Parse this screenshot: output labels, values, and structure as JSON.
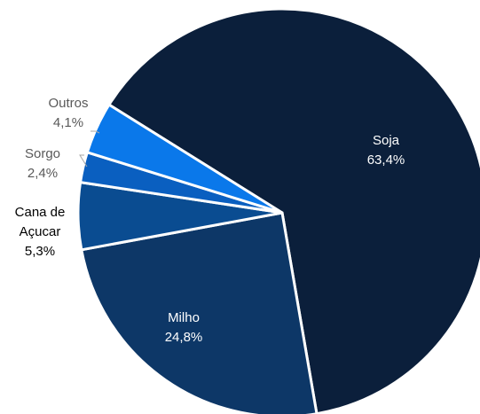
{
  "chart_data": {
    "type": "pie",
    "categories": [
      "Soja",
      "Milho",
      "Cana de Açucar",
      "Sorgo",
      "Outros"
    ],
    "values": [
      63.4,
      24.8,
      5.3,
      2.4,
      4.1
    ],
    "value_labels": [
      "63,4%",
      "24,8%",
      "5,3%",
      "2,4%",
      "4,1%"
    ],
    "colors": [
      "#0b1f3b",
      "#0d3767",
      "#0a4c91",
      "#0a5fc0",
      "#0a78ea"
    ]
  }
}
